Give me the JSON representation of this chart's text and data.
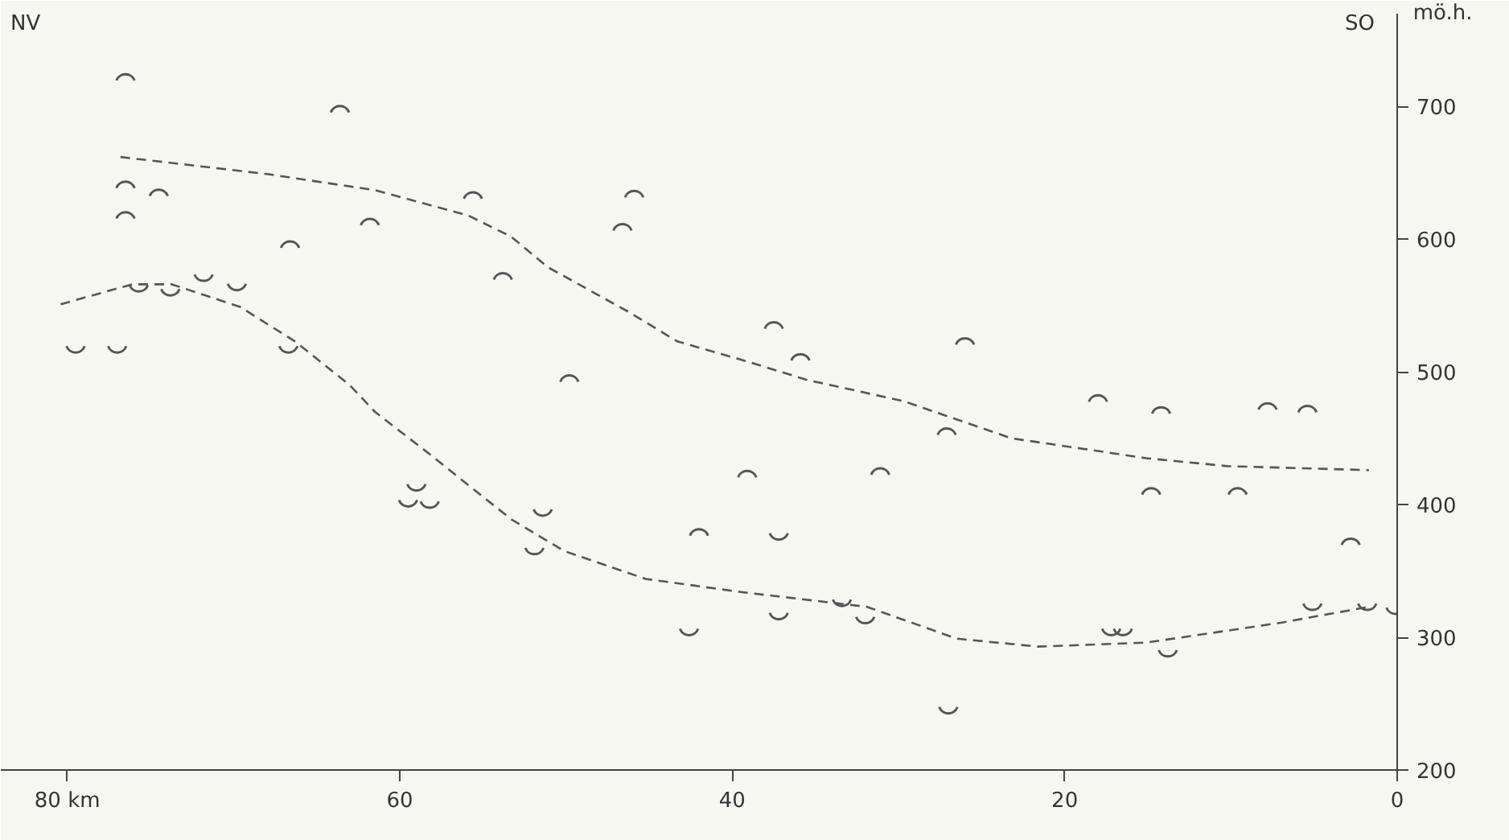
{
  "chart_data": {
    "type": "scatter",
    "ylabel": "mö.h.",
    "annotations": [
      "NV",
      "SO"
    ],
    "xlim": [
      84,
      0
    ],
    "ylim": [
      200,
      770
    ],
    "xticks": [
      {
        "value": 80,
        "label": "80 km"
      },
      60,
      40,
      20,
      0
    ],
    "yticks": [
      200,
      300,
      400,
      500,
      600,
      700
    ],
    "grid": false,
    "series": [
      {
        "color": "#555555",
        "x": [
          76.5,
          63.6,
          76.5,
          74.5,
          76.5,
          55.6,
          61.8,
          66.6,
          53.8,
          45.9,
          46.6,
          37.5,
          35.9,
          26.0,
          49.8,
          39.1,
          42.0,
          18.0,
          14.2,
          7.8,
          5.4,
          27.1,
          31.1,
          14.8,
          9.6,
          2.8
        ],
        "values": [
          722,
          698,
          641,
          635,
          618,
          633,
          613,
          596,
          572,
          634,
          609,
          535,
          511,
          523,
          495,
          423,
          379,
          480,
          471,
          474,
          472,
          455,
          425,
          410,
          410,
          372
        ]
      },
      {
        "color": "#555555",
        "x": [
          75.7,
          73.8,
          71.8,
          69.8,
          66.7,
          79.5,
          77.0,
          59.0,
          59.5,
          58.2,
          51.4,
          51.9,
          42.6,
          37.2,
          37.2,
          33.4,
          32.0,
          17.2,
          16.5,
          13.8,
          5.1,
          1.8,
          0.1,
          27.0
        ],
        "values": [
          563,
          560,
          571,
          564,
          517,
          517,
          517,
          413,
          401,
          400,
          394,
          365,
          304,
          376,
          316,
          326,
          313,
          304,
          304,
          288,
          323,
          323,
          320,
          245
        ]
      },
      {
        "type": "line",
        "color": "#555555",
        "line_style": "dashed",
        "x": [
          76.8,
          67.9,
          61.5,
          55.9,
          53.3,
          51.1,
          46.2,
          43.3,
          39.4,
          35.5,
          29.7,
          23.2,
          15.1,
          10.2,
          1.7
        ],
        "values": [
          662,
          649,
          637,
          618,
          602,
          579,
          545,
          523,
          509,
          494,
          478,
          450,
          435,
          429,
          426
        ]
      },
      {
        "type": "line",
        "color": "#555555",
        "line_style": "dashed",
        "x": [
          80.4,
          76.1,
          73.7,
          69.6,
          66.3,
          63.0,
          61.5,
          58.2,
          53.3,
          50.1,
          45.2,
          39.4,
          31.9,
          26.5,
          21.6,
          15.1,
          7.0,
          1.7
        ],
        "values": [
          551,
          566,
          566,
          549,
          523,
          490,
          470,
          438,
          389,
          365,
          344,
          334,
          323,
          299,
          293,
          296,
          311,
          323
        ]
      }
    ]
  }
}
